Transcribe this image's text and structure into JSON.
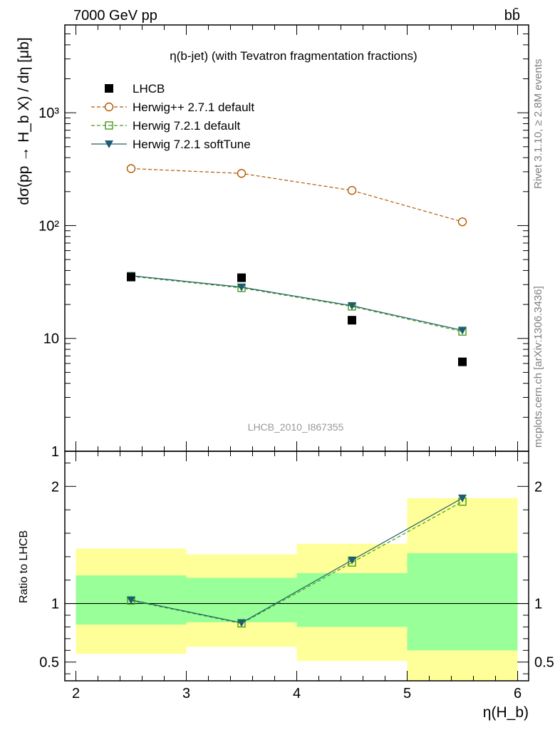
{
  "header": {
    "left": "7000 GeV pp",
    "right": "bb̄"
  },
  "side_labels": {
    "rivet": "Rivet 3.1.10, ≥ 2.8M events",
    "mcplots": "mcplots.cern.ch [arXiv:1306.3436]"
  },
  "chart_data": [
    {
      "type": "scatter",
      "panel": "main",
      "title": "η(b-jet) (with Tevatron fragmentation fractions)",
      "watermark": "LHCB_2010_I867355",
      "ylabel": "dσ(pp → H_b X) / dη [μb]",
      "yscale": "log",
      "ylim": [
        1,
        6000
      ],
      "xlim": [
        1.9,
        6.1
      ],
      "y_tick_labels": [
        "1",
        "10",
        "10²",
        "10³"
      ],
      "legend_position": "top-left",
      "x": [
        2.5,
        3.5,
        4.5,
        5.5
      ],
      "series": [
        {
          "name": "LHCB",
          "marker": "filled-square",
          "color": "#000000",
          "values": [
            35,
            34.5,
            14.5,
            6.2
          ]
        },
        {
          "name": "Herwig++ 2.7.1 default",
          "marker": "open-circle",
          "line": "dashed",
          "color": "#b35900",
          "values": [
            320,
            290,
            205,
            108
          ]
        },
        {
          "name": "Herwig 7.2.1 default",
          "marker": "open-square",
          "line": "dashed",
          "color": "#4a9a1a",
          "values": [
            35.5,
            28,
            19.2,
            11.5
          ]
        },
        {
          "name": "Herwig 7.2.1 softTune",
          "marker": "filled-triangle-down",
          "line": "solid",
          "color": "#1d5d6e",
          "values": [
            36,
            28.5,
            19.5,
            11.8
          ]
        }
      ]
    },
    {
      "type": "line",
      "panel": "ratio",
      "ylabel": "Ratio to LHCB",
      "xlabel": "η(H_b)",
      "ylim": [
        0.34,
        2.3
      ],
      "xlim": [
        1.9,
        6.1
      ],
      "x_ticks": [
        2,
        3,
        4,
        5,
        6
      ],
      "x_tick_labels": [
        "2",
        "3",
        "4",
        "5",
        "6"
      ],
      "y_ticks": [
        0.5,
        1,
        2
      ],
      "y_tick_labels": [
        "0.5",
        "1",
        "2"
      ],
      "bins": [
        {
          "lo": 2,
          "hi": 3,
          "green": [
            0.82,
            1.24
          ],
          "yellow": [
            0.57,
            1.47
          ]
        },
        {
          "lo": 3,
          "hi": 4,
          "green": [
            0.84,
            1.22
          ],
          "yellow": [
            0.63,
            1.42
          ]
        },
        {
          "lo": 4,
          "hi": 5,
          "green": [
            0.8,
            1.26
          ],
          "yellow": [
            0.51,
            1.51
          ]
        },
        {
          "lo": 5,
          "hi": 6,
          "green": [
            0.6,
            1.43
          ],
          "yellow": [
            0.33,
            1.9
          ]
        }
      ],
      "x": [
        2.5,
        3.5,
        4.5,
        5.5
      ],
      "series": [
        {
          "name": "Herwig 7.2.1 default",
          "marker": "open-square",
          "line": "dashed",
          "color": "#4a9a1a",
          "values": [
            1.025,
            0.83,
            1.35,
            1.87
          ]
        },
        {
          "name": "Herwig 7.2.1 softTune",
          "marker": "filled-triangle-down",
          "line": "solid",
          "color": "#1d5d6e",
          "values": [
            1.03,
            0.835,
            1.37,
            1.9
          ]
        }
      ]
    }
  ],
  "colors": {
    "green_band": "#99ff99",
    "yellow_band": "#ffff99"
  }
}
